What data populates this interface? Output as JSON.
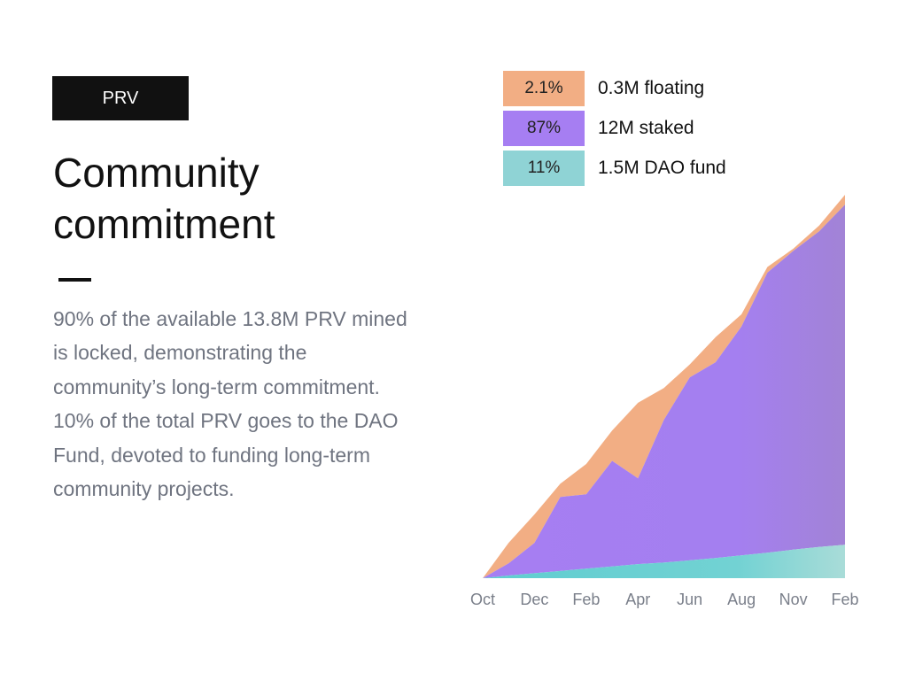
{
  "tag": "PRV",
  "title_line1": "Community",
  "title_line2": "commitment",
  "description": "90% of the available 13.8M PRV mined is locked, demonstrating the community’s long-term commitment. 10% of the total PRV goes to the DAO Fund, devoted to funding long-term community projects.",
  "legend": [
    {
      "pct": "2.1%",
      "label": "0.3M floating",
      "color": "#f2ae84"
    },
    {
      "pct": "87%",
      "label": "12M staked",
      "color": "#a67ef2"
    },
    {
      "pct": "11%",
      "label": "1.5M DAO fund",
      "color": "#8fd3d5"
    }
  ],
  "chart_data": {
    "type": "area",
    "stacked": true,
    "x_tick_labels": [
      "Oct",
      "Dec",
      "Feb",
      "Apr",
      "Jun",
      "Aug",
      "Nov",
      "Feb"
    ],
    "x": [
      0,
      1,
      2,
      3,
      4,
      5,
      6,
      7,
      8,
      9,
      10,
      11,
      12,
      13,
      14
    ],
    "series": [
      {
        "name": "1.5M DAO fund",
        "color": "#5fcdd0",
        "values": [
          0.0,
          0.07,
          0.13,
          0.19,
          0.25,
          0.31,
          0.37,
          0.41,
          0.47,
          0.53,
          0.6,
          0.67,
          0.75,
          0.82,
          0.88
        ]
      },
      {
        "name": "12M staked",
        "color": "#a67ef2",
        "values": [
          0.0,
          0.32,
          0.8,
          1.95,
          1.96,
          2.78,
          2.26,
          3.76,
          4.82,
          5.16,
          6.03,
          7.38,
          7.87,
          8.32,
          8.96
        ]
      },
      {
        "name": "0.3M floating",
        "color": "#f2ae84",
        "values": [
          0.0,
          0.54,
          0.75,
          0.35,
          0.8,
          0.8,
          1.99,
          0.84,
          0.34,
          0.66,
          0.32,
          0.15,
          0.06,
          0.15,
          0.26
        ]
      }
    ],
    "ylim": [
      0,
      10.1
    ]
  }
}
